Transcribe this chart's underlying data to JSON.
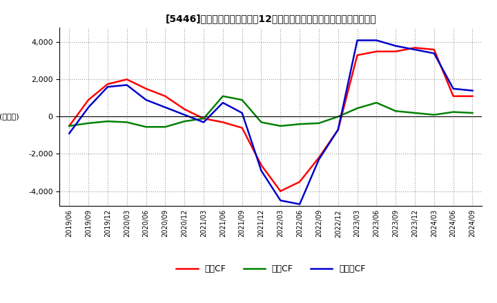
{
  "title": "[5446]　キャッシュフローの12か月移動合計の対前年同期増減額の推移",
  "ylabel": "(百万円)",
  "ylim": [
    -4800,
    4800
  ],
  "yticks": [
    -4000,
    -2000,
    0,
    2000,
    4000
  ],
  "legend_labels": [
    "営業CF",
    "投資CF",
    "フリーCF"
  ],
  "legend_colors": [
    "#ff0000",
    "#008000",
    "#0000cc"
  ],
  "dates": [
    "2019/06",
    "2019/09",
    "2019/12",
    "2020/03",
    "2020/06",
    "2020/09",
    "2020/12",
    "2021/03",
    "2021/06",
    "2021/09",
    "2021/12",
    "2022/03",
    "2022/06",
    "2022/09",
    "2022/12",
    "2023/03",
    "2023/06",
    "2023/09",
    "2023/12",
    "2024/03",
    "2024/06",
    "2024/09"
  ],
  "operating_cf": [
    -500,
    900,
    1750,
    2000,
    1500,
    1100,
    400,
    -100,
    -300,
    -600,
    -2600,
    -4000,
    -3500,
    -2200,
    -700,
    3300,
    3500,
    3500,
    3700,
    3600,
    1100,
    1100
  ],
  "investing_cf": [
    -500,
    -350,
    -250,
    -300,
    -550,
    -550,
    -250,
    -100,
    1100,
    900,
    -300,
    -500,
    -400,
    -350,
    0,
    450,
    750,
    300,
    200,
    100,
    250,
    200
  ],
  "free_cf": [
    -900,
    500,
    1600,
    1700,
    900,
    500,
    100,
    -300,
    750,
    200,
    -2900,
    -4500,
    -4700,
    -2300,
    -700,
    4100,
    4100,
    3800,
    3600,
    3400,
    1500,
    1400
  ]
}
